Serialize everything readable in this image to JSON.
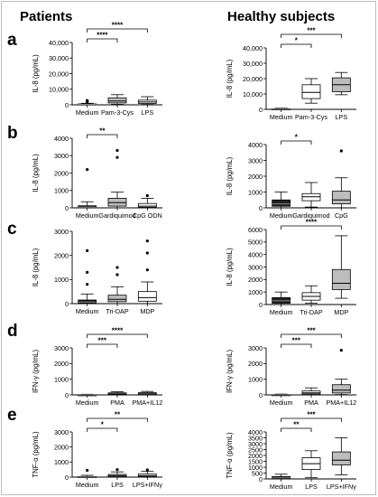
{
  "headers": {
    "left": "Patients",
    "right": "Healthy subjects"
  },
  "chart_data": [
    {
      "type": "box",
      "panel": "a",
      "group": "Patients",
      "ylabel": "IL-8 (pg/mL)",
      "ylim": [
        0,
        40000
      ],
      "yticks": [
        0,
        10000,
        20000,
        30000,
        40000
      ],
      "ytick_labels": [
        "0",
        "10,000",
        "20,000",
        "30,000",
        "40,000"
      ],
      "categories": [
        "Medium",
        "Pam-3-Cys",
        "LPS"
      ],
      "boxes": [
        {
          "min": 0,
          "q1": 50,
          "median": 300,
          "q3": 600,
          "max": 1000,
          "fill": "#222222"
        },
        {
          "min": 300,
          "q1": 1200,
          "median": 2500,
          "q3": 4500,
          "max": 6500,
          "fill": "#bdbdbd"
        },
        {
          "min": 200,
          "q1": 900,
          "median": 1800,
          "q3": 3000,
          "max": 5200,
          "fill": "#ffffff"
        }
      ],
      "outliers": [
        {
          "cat": 0,
          "y": 1500
        },
        {
          "cat": 0,
          "y": 2300
        },
        {
          "cat": 0,
          "y": 2800
        }
      ],
      "annotations": [
        {
          "from": 0,
          "to": 1,
          "label": "****",
          "level": 1
        },
        {
          "from": 0,
          "to": 2,
          "label": "****",
          "level": 2
        }
      ]
    },
    {
      "type": "box",
      "panel": "a",
      "group": "Healthy subjects",
      "ylabel": "IL-8 (pg/mL)",
      "ylim": [
        0,
        40000
      ],
      "yticks": [
        0,
        10000,
        20000,
        30000,
        40000
      ],
      "ytick_labels": [
        "0",
        "10,000",
        "20,000",
        "30,000",
        "40,000"
      ],
      "categories": [
        "Medium",
        "Pam-3-Cys",
        "LPS"
      ],
      "boxes": [
        {
          "min": 0,
          "q1": 50,
          "median": 150,
          "q3": 400,
          "max": 700,
          "fill": "#222222"
        },
        {
          "min": 4000,
          "q1": 7000,
          "median": 11000,
          "q3": 16000,
          "max": 20000,
          "fill": "#ffffff"
        },
        {
          "min": 9500,
          "q1": 11500,
          "median": 16000,
          "q3": 20500,
          "max": 24000,
          "fill": "#bdbdbd"
        }
      ],
      "outliers": [],
      "annotations": [
        {
          "from": 0,
          "to": 1,
          "label": "*",
          "level": 1
        },
        {
          "from": 0,
          "to": 2,
          "label": "***",
          "level": 2
        }
      ]
    },
    {
      "type": "box",
      "panel": "b",
      "group": "Patients",
      "ylabel": "IL-8 (pg/mL)",
      "ylim": [
        0,
        4000
      ],
      "yticks": [
        0,
        1000,
        2000,
        3000,
        4000
      ],
      "ytick_labels": [
        "0",
        "1000",
        "2000",
        "3000",
        "4000"
      ],
      "categories": [
        "Medium",
        "Gardiquimod",
        "CpG ODN"
      ],
      "boxes": [
        {
          "min": 0,
          "q1": 10,
          "median": 40,
          "q3": 120,
          "max": 350,
          "fill": "#222222"
        },
        {
          "min": 0,
          "q1": 100,
          "median": 300,
          "q3": 550,
          "max": 900,
          "fill": "#bdbdbd"
        },
        {
          "min": 0,
          "q1": 30,
          "median": 100,
          "q3": 250,
          "max": 550,
          "fill": "#ffffff"
        }
      ],
      "outliers": [
        {
          "cat": 0,
          "y": 2200
        },
        {
          "cat": 1,
          "y": 3300
        },
        {
          "cat": 1,
          "y": 2900
        },
        {
          "cat": 2,
          "y": 700
        }
      ],
      "annotations": [
        {
          "from": 0,
          "to": 1,
          "label": "**",
          "level": 1
        }
      ]
    },
    {
      "type": "box",
      "panel": "b",
      "group": "Healthy subjects",
      "ylabel": "IL-8 (pg/mL)",
      "ylim": [
        0,
        4000
      ],
      "yticks": [
        0,
        1000,
        2000,
        3000,
        4000
      ],
      "ytick_labels": [
        "0",
        "1000",
        "2000",
        "3000",
        "4000"
      ],
      "categories": [
        "Medium",
        "Gardiquimod",
        "CpG"
      ],
      "boxes": [
        {
          "min": 0,
          "q1": 100,
          "median": 250,
          "q3": 500,
          "max": 1000,
          "fill": "#222222"
        },
        {
          "min": 50,
          "q1": 450,
          "median": 700,
          "q3": 900,
          "max": 1600,
          "fill": "#ffffff"
        },
        {
          "min": 0,
          "q1": 250,
          "median": 500,
          "q3": 1050,
          "max": 1900,
          "fill": "#bdbdbd"
        }
      ],
      "outliers": [
        {
          "cat": 2,
          "y": 3600
        }
      ],
      "annotations": [
        {
          "from": 0,
          "to": 1,
          "label": "*",
          "level": 1
        }
      ]
    },
    {
      "type": "box",
      "panel": "c",
      "group": "Patients",
      "ylabel": "IL-8 (pg/mL)",
      "ylim": [
        0,
        3000
      ],
      "yticks": [
        0,
        1000,
        2000,
        3000
      ],
      "ytick_labels": [
        "0",
        "1000",
        "2000",
        "3000"
      ],
      "categories": [
        "Medium",
        "Tri-DAP",
        "MDP"
      ],
      "boxes": [
        {
          "min": 0,
          "q1": 20,
          "median": 60,
          "q3": 150,
          "max": 400,
          "fill": "#222222"
        },
        {
          "min": 0,
          "q1": 80,
          "median": 180,
          "q3": 350,
          "max": 700,
          "fill": "#bdbdbd"
        },
        {
          "min": 0,
          "q1": 100,
          "median": 250,
          "q3": 500,
          "max": 900,
          "fill": "#ffffff"
        }
      ],
      "outliers": [
        {
          "cat": 0,
          "y": 2200
        },
        {
          "cat": 0,
          "y": 1300
        },
        {
          "cat": 0,
          "y": 800
        },
        {
          "cat": 1,
          "y": 1500
        },
        {
          "cat": 1,
          "y": 1200
        },
        {
          "cat": 2,
          "y": 2600
        },
        {
          "cat": 2,
          "y": 2100
        },
        {
          "cat": 2,
          "y": 1400
        }
      ],
      "annotations": []
    },
    {
      "type": "box",
      "panel": "c",
      "group": "Healthy subjects",
      "ylabel": "IL-8 (pg/mL)",
      "ylim": [
        0,
        6000
      ],
      "yticks": [
        0,
        1000,
        2000,
        3000,
        4000,
        5000,
        6000
      ],
      "ytick_labels": [
        "0",
        "1000",
        "2000",
        "3000",
        "4000",
        "5000",
        "6000"
      ],
      "categories": [
        "Medium",
        "Tri-DAP",
        "MDP"
      ],
      "boxes": [
        {
          "min": 0,
          "q1": 100,
          "median": 300,
          "q3": 550,
          "max": 1000,
          "fill": "#222222"
        },
        {
          "min": 100,
          "q1": 350,
          "median": 650,
          "q3": 950,
          "max": 1500,
          "fill": "#ffffff"
        },
        {
          "min": 500,
          "q1": 1200,
          "median": 1700,
          "q3": 2800,
          "max": 5500,
          "fill": "#bdbdbd"
        }
      ],
      "outliers": [],
      "annotations": [
        {
          "from": 0,
          "to": 2,
          "label": "****",
          "level": 1
        }
      ]
    },
    {
      "type": "box",
      "panel": "d",
      "group": "Patients",
      "ylabel": "IFN-γ (pg/mL)",
      "ylim": [
        0,
        3000
      ],
      "yticks": [
        0,
        1000,
        2000,
        3000
      ],
      "ytick_labels": [
        "0",
        "1000",
        "2000",
        "3000"
      ],
      "categories": [
        "Medium",
        "PMA",
        "PMA+IL12"
      ],
      "boxes": [
        {
          "min": 0,
          "q1": 0,
          "median": 5,
          "q3": 15,
          "max": 40,
          "fill": "#222222"
        },
        {
          "min": 0,
          "q1": 20,
          "median": 60,
          "q3": 130,
          "max": 200,
          "fill": "#bdbdbd"
        },
        {
          "min": 0,
          "q1": 20,
          "median": 70,
          "q3": 140,
          "max": 220,
          "fill": "#ffffff"
        }
      ],
      "outliers": [],
      "annotations": [
        {
          "from": 0,
          "to": 1,
          "label": "***",
          "level": 1
        },
        {
          "from": 0,
          "to": 2,
          "label": "****",
          "level": 2
        }
      ]
    },
    {
      "type": "box",
      "panel": "d",
      "group": "Healthy subjects",
      "ylabel": "IFN-γ (pg/mL)",
      "ylim": [
        0,
        3000
      ],
      "yticks": [
        0,
        1000,
        2000,
        3000
      ],
      "ytick_labels": [
        "0",
        "1000",
        "2000",
        "3000"
      ],
      "categories": [
        "Medium",
        "PMA",
        "PMA+IL12"
      ],
      "boxes": [
        {
          "min": 0,
          "q1": 0,
          "median": 5,
          "q3": 20,
          "max": 50,
          "fill": "#222222"
        },
        {
          "min": 10,
          "q1": 60,
          "median": 130,
          "q3": 250,
          "max": 450,
          "fill": "#ffffff"
        },
        {
          "min": 20,
          "q1": 120,
          "median": 300,
          "q3": 650,
          "max": 1000,
          "fill": "#bdbdbd"
        }
      ],
      "outliers": [
        {
          "cat": 2,
          "y": 2850
        }
      ],
      "annotations": [
        {
          "from": 0,
          "to": 1,
          "label": "***",
          "level": 1
        },
        {
          "from": 0,
          "to": 2,
          "label": "***",
          "level": 2
        }
      ]
    },
    {
      "type": "box",
      "panel": "e",
      "group": "Patients",
      "ylabel": "TNF-α (pg/mL)",
      "ylim": [
        0,
        3000
      ],
      "yticks": [
        0,
        1000,
        2000,
        3000
      ],
      "ytick_labels": [
        "0",
        "1000",
        "2000",
        "3000"
      ],
      "categories": [
        "Medium",
        "LPS",
        "LPS+IFNγ"
      ],
      "boxes": [
        {
          "min": 0,
          "q1": 0,
          "median": 10,
          "q3": 40,
          "max": 120,
          "fill": "#222222"
        },
        {
          "min": 0,
          "q1": 20,
          "median": 80,
          "q3": 180,
          "max": 350,
          "fill": "#bdbdbd"
        },
        {
          "min": 0,
          "q1": 30,
          "median": 100,
          "q3": 200,
          "max": 380,
          "fill": "#ffffff"
        }
      ],
      "outliers": [
        {
          "cat": 0,
          "y": 450
        },
        {
          "cat": 1,
          "y": 500
        },
        {
          "cat": 2,
          "y": 480
        }
      ],
      "annotations": [
        {
          "from": 0,
          "to": 1,
          "label": "*",
          "level": 1
        },
        {
          "from": 0,
          "to": 2,
          "label": "**",
          "level": 2
        }
      ]
    },
    {
      "type": "box",
      "panel": "e",
      "group": "Healthy subjects",
      "ylabel": "TNF-α (pg/mL)",
      "ylim": [
        0,
        4000
      ],
      "yticks": [
        0,
        500,
        1000,
        1500,
        2000,
        2500,
        3000,
        3500,
        4000
      ],
      "ytick_labels": [
        "0",
        "500",
        "1000",
        "1500",
        "2000",
        "2500",
        "3000",
        "3500",
        "4000"
      ],
      "categories": [
        "Medium",
        "LPS",
        "LPS+IFNγ"
      ],
      "boxes": [
        {
          "min": 0,
          "q1": 20,
          "median": 100,
          "q3": 200,
          "max": 400,
          "fill": "#222222"
        },
        {
          "min": 100,
          "q1": 800,
          "median": 1300,
          "q3": 1800,
          "max": 2400,
          "fill": "#ffffff"
        },
        {
          "min": 350,
          "q1": 1200,
          "median": 1600,
          "q3": 2300,
          "max": 3500,
          "fill": "#bdbdbd"
        }
      ],
      "outliers": [],
      "annotations": [
        {
          "from": 0,
          "to": 1,
          "label": "**",
          "level": 1
        },
        {
          "from": 0,
          "to": 2,
          "label": "***",
          "level": 2
        }
      ]
    }
  ]
}
